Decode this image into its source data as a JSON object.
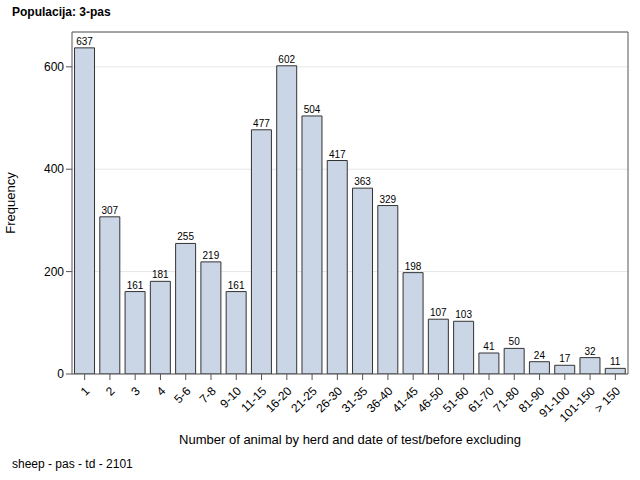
{
  "chart_data": {
    "type": "bar",
    "title": "Populacija: 3-pas",
    "subtitle": "sheep - pas - td - 2101",
    "x_label": "Number of animal by herd and date of test/before excluding",
    "y_label": "Frequency",
    "categories": [
      "1",
      "2",
      "3",
      "4",
      "5-6",
      "7-8",
      "9-10",
      "11-15",
      "16-20",
      "21-25",
      "26-30",
      "31-35",
      "36-40",
      "41-45",
      "46-50",
      "51-60",
      "61-70",
      "71-80",
      "81-90",
      "91-100",
      "101-150",
      "> 150"
    ],
    "values": [
      637,
      307,
      161,
      181,
      255,
      219,
      161,
      477,
      602,
      504,
      417,
      363,
      329,
      198,
      107,
      103,
      41,
      50,
      24,
      17,
      32,
      11
    ],
    "color": "#cad5e5",
    "ylim": [
      0,
      668
    ],
    "yticks": [
      0,
      200,
      400,
      600
    ],
    "grid": true,
    "data_labels": true
  }
}
